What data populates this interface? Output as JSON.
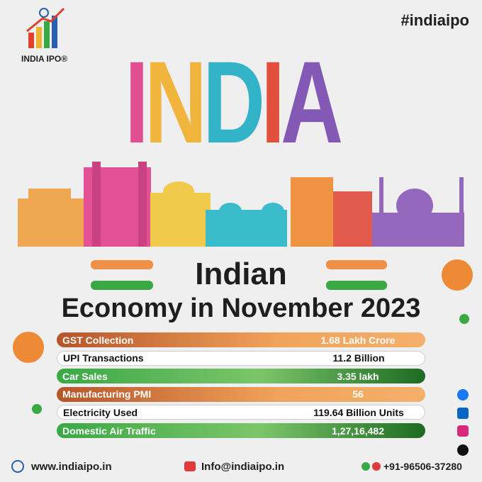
{
  "header": {
    "hashtag": "#indiaipo",
    "brand": "INDIA IPO®"
  },
  "banner": "INDIA",
  "title": {
    "line1": "Indian",
    "line2": "Economy in November 2023"
  },
  "rows": [
    [
      "GST Collection",
      "1.68 Lakh Crore"
    ],
    [
      "UPI Transactions",
      "11.2 Billion"
    ],
    [
      "Car Sales",
      "3.35 lakh"
    ],
    [
      "Manufacturing PMI",
      "56"
    ],
    [
      "Electricity Used",
      "119.64 Billion Units"
    ],
    [
      "Domestic Air Traffic",
      "1,27,16,482"
    ]
  ],
  "footer": {
    "website": "www.indiaipo.in",
    "email": "Info@indiaipo.in",
    "phone": "+91-96506-37280"
  }
}
